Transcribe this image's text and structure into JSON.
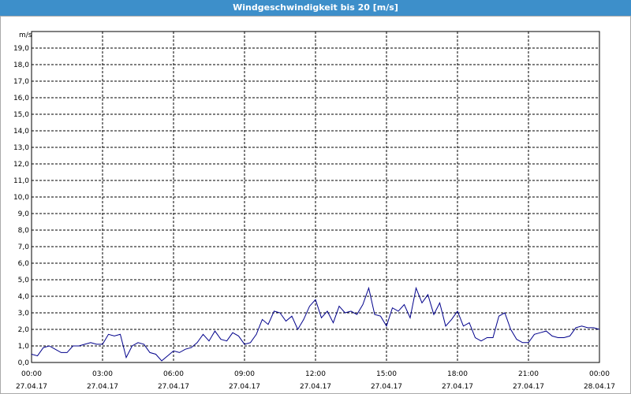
{
  "chart_data": {
    "type": "line",
    "title": "Windgeschwindigkeit bis 20 [m/s]",
    "y_label": "m/s",
    "xlim": [
      0,
      24
    ],
    "xticks": [
      {
        "value": 0,
        "label": "00:00",
        "date": "27.04.17"
      },
      {
        "value": 3,
        "label": "03:00",
        "date": "27.04.17"
      },
      {
        "value": 6,
        "label": "06:00",
        "date": "27.04.17"
      },
      {
        "value": 9,
        "label": "09:00",
        "date": "27.04.17"
      },
      {
        "value": 12,
        "label": "12:00",
        "date": "27.04.17"
      },
      {
        "value": 15,
        "label": "15:00",
        "date": "27.04.17"
      },
      {
        "value": 18,
        "label": "18:00",
        "date": "27.04.17"
      },
      {
        "value": 21,
        "label": "21:00",
        "date": "27.04.17"
      },
      {
        "value": 24,
        "label": "00:00",
        "date": "28.04.17"
      }
    ],
    "ylim": [
      0,
      20
    ],
    "yticks": [
      {
        "value": 0,
        "label": "0,0"
      },
      {
        "value": 1,
        "label": "1,0"
      },
      {
        "value": 2,
        "label": "2,0"
      },
      {
        "value": 3,
        "label": "3,0"
      },
      {
        "value": 4,
        "label": "4,0"
      },
      {
        "value": 5,
        "label": "5,0"
      },
      {
        "value": 6,
        "label": "6,0"
      },
      {
        "value": 7,
        "label": "7,0"
      },
      {
        "value": 8,
        "label": "8,0"
      },
      {
        "value": 9,
        "label": "9,0"
      },
      {
        "value": 10,
        "label": "10,0"
      },
      {
        "value": 11,
        "label": "11,0"
      },
      {
        "value": 12,
        "label": "12,0"
      },
      {
        "value": 13,
        "label": "13,0"
      },
      {
        "value": 14,
        "label": "14,0"
      },
      {
        "value": 15,
        "label": "15,0"
      },
      {
        "value": 16,
        "label": "16,0"
      },
      {
        "value": 17,
        "label": "17,0"
      },
      {
        "value": 18,
        "label": "18,0"
      },
      {
        "value": 19,
        "label": "19,0"
      }
    ],
    "grid": true,
    "x": [
      0,
      0.25,
      0.5,
      0.75,
      1,
      1.25,
      1.5,
      1.75,
      2,
      2.25,
      2.5,
      2.75,
      3,
      3.25,
      3.5,
      3.75,
      4,
      4.25,
      4.5,
      4.75,
      5,
      5.25,
      5.5,
      5.75,
      6,
      6.25,
      6.5,
      6.75,
      7,
      7.25,
      7.5,
      7.75,
      8,
      8.25,
      8.5,
      8.75,
      9,
      9.25,
      9.5,
      9.75,
      10,
      10.25,
      10.5,
      10.75,
      11,
      11.25,
      11.5,
      11.75,
      12,
      12.25,
      12.5,
      12.75,
      13,
      13.25,
      13.5,
      13.75,
      14,
      14.25,
      14.5,
      14.75,
      15,
      15.25,
      15.5,
      15.75,
      16,
      16.25,
      16.5,
      16.75,
      17,
      17.25,
      17.5,
      17.75,
      18,
      18.25,
      18.5,
      18.75,
      19,
      19.25,
      19.5,
      19.75,
      20,
      20.25,
      20.5,
      20.75,
      21,
      21.25,
      21.5,
      21.75,
      22,
      22.25,
      22.5,
      22.75,
      23,
      23.25,
      23.5,
      23.75,
      24
    ],
    "series": [
      {
        "color": "#00008b",
        "values": [
          0.5,
          0.4,
          0.9,
          1.0,
          0.8,
          0.6,
          0.6,
          1.0,
          1.0,
          1.1,
          1.2,
          1.1,
          1.1,
          1.7,
          1.6,
          1.7,
          0.3,
          1.0,
          1.2,
          1.1,
          0.6,
          0.5,
          0.1,
          0.4,
          0.7,
          0.6,
          0.8,
          0.9,
          1.2,
          1.7,
          1.3,
          1.9,
          1.4,
          1.3,
          1.8,
          1.6,
          1.1,
          1.2,
          1.7,
          2.6,
          2.3,
          3.1,
          3.0,
          2.5,
          2.8,
          2.0,
          2.6,
          3.4,
          3.8,
          2.7,
          3.1,
          2.4,
          3.4,
          3.0,
          3.1,
          2.9,
          3.5,
          4.5,
          2.9,
          2.8,
          2.2,
          3.3,
          3.1,
          3.5,
          2.7,
          4.5,
          3.6,
          4.1,
          2.9,
          3.6,
          2.2,
          2.6,
          3.1,
          2.2,
          2.4,
          1.5,
          1.3,
          1.5,
          1.5,
          2.8,
          3.0,
          2.0,
          1.4,
          1.2,
          1.2,
          1.7,
          1.8,
          1.9,
          1.6,
          1.5,
          1.5,
          1.6,
          2.1,
          2.2,
          2.1,
          2.1,
          2.0
        ]
      }
    ]
  }
}
